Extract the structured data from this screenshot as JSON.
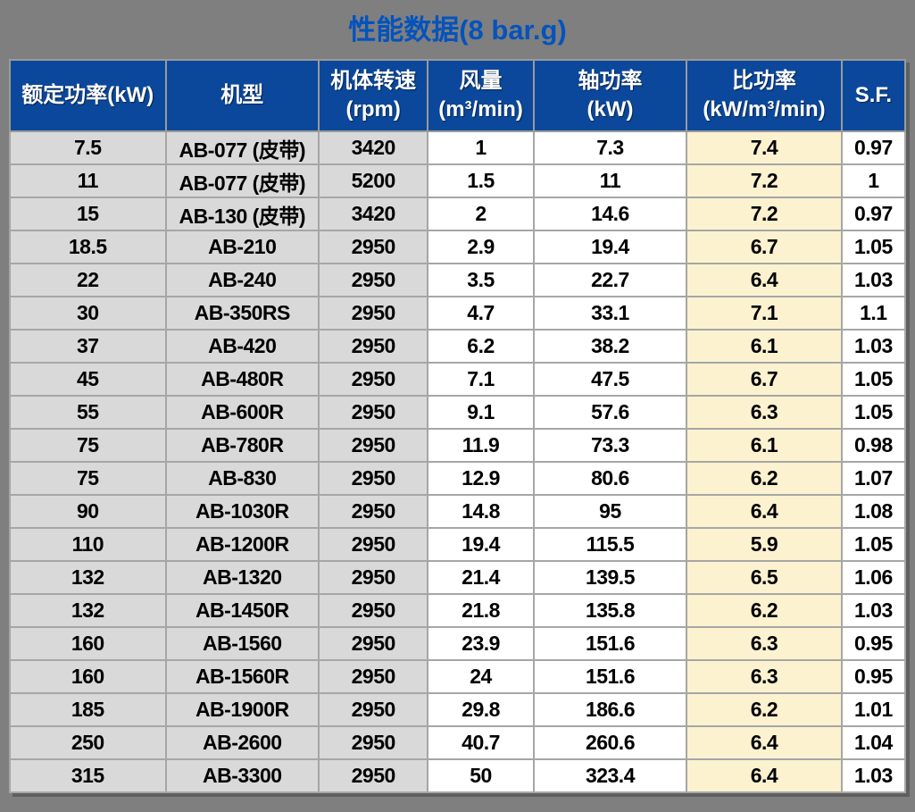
{
  "title": "性能数据(8 bar.g)",
  "colors": {
    "page_background": "#7f7f7f",
    "title_text": "#0553bc",
    "header_background": "#0b489c",
    "header_text": "#ffffff",
    "gray_cell": "#d9d9d9",
    "cream_cell": "#fcf2d0",
    "white_cell": "#ffffff",
    "gridline": "#a6a6a6",
    "body_text": "#000000"
  },
  "table": {
    "headers": [
      {
        "label": "额定功率(kW)",
        "unit": ""
      },
      {
        "label": "机型",
        "unit": ""
      },
      {
        "label": "机体转速",
        "unit": "(rpm)"
      },
      {
        "label": "风量",
        "unit": "(m³/min)"
      },
      {
        "label": "轴功率",
        "unit": "(kW)"
      },
      {
        "label": "比功率",
        "unit": "(kW/m³/min)"
      },
      {
        "label": "S.F.",
        "unit": ""
      }
    ],
    "rows": [
      [
        "7.5",
        "AB-077 (皮带)",
        "3420",
        "1",
        "7.3",
        "7.4",
        "0.97"
      ],
      [
        "11",
        "AB-077 (皮带)",
        "5200",
        "1.5",
        "11",
        "7.2",
        "1"
      ],
      [
        "15",
        "AB-130 (皮带)",
        "3420",
        "2",
        "14.6",
        "7.2",
        "0.97"
      ],
      [
        "18.5",
        "AB-210",
        "2950",
        "2.9",
        "19.4",
        "6.7",
        "1.05"
      ],
      [
        "22",
        "AB-240",
        "2950",
        "3.5",
        "22.7",
        "6.4",
        "1.03"
      ],
      [
        "30",
        "AB-350RS",
        "2950",
        "4.7",
        "33.1",
        "7.1",
        "1.1"
      ],
      [
        "37",
        "AB-420",
        "2950",
        "6.2",
        "38.2",
        "6.1",
        "1.03"
      ],
      [
        "45",
        "AB-480R",
        "2950",
        "7.1",
        "47.5",
        "6.7",
        "1.05"
      ],
      [
        "55",
        "AB-600R",
        "2950",
        "9.1",
        "57.6",
        "6.3",
        "1.05"
      ],
      [
        "75",
        "AB-780R",
        "2950",
        "11.9",
        "73.3",
        "6.1",
        "0.98"
      ],
      [
        "75",
        "AB-830",
        "2950",
        "12.9",
        "80.6",
        "6.2",
        "1.07"
      ],
      [
        "90",
        "AB-1030R",
        "2950",
        "14.8",
        "95",
        "6.4",
        "1.08"
      ],
      [
        "110",
        "AB-1200R",
        "2950",
        "19.4",
        "115.5",
        "5.9",
        "1.05"
      ],
      [
        "132",
        "AB-1320",
        "2950",
        "21.4",
        "139.5",
        "6.5",
        "1.06"
      ],
      [
        "132",
        "AB-1450R",
        "2950",
        "21.8",
        "135.8",
        "6.2",
        "1.03"
      ],
      [
        "160",
        "AB-1560",
        "2950",
        "23.9",
        "151.6",
        "6.3",
        "0.95"
      ],
      [
        "160",
        "AB-1560R",
        "2950",
        "24",
        "151.6",
        "6.3",
        "0.95"
      ],
      [
        "185",
        "AB-1900R",
        "2950",
        "29.8",
        "186.6",
        "6.2",
        "1.01"
      ],
      [
        "250",
        "AB-2600",
        "2950",
        "40.7",
        "260.6",
        "6.4",
        "1.04"
      ],
      [
        "315",
        "AB-3300",
        "2950",
        "50",
        "323.4",
        "6.4",
        "1.03"
      ]
    ]
  }
}
